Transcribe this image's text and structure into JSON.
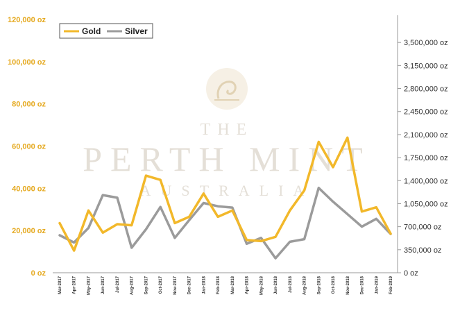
{
  "watermark": {
    "line1": "THE",
    "line2": "PERTH MINT",
    "line3": "AUSTRALIA"
  },
  "chart_data": {
    "type": "line",
    "x": [
      "Mar-2017",
      "Apr-2017",
      "May-2017",
      "Jun-2017",
      "Jul-2017",
      "Aug-2017",
      "Sep-2017",
      "Oct-2017",
      "Nov-2017",
      "Dec-2017",
      "Jan-2018",
      "Feb-2018",
      "Mar-2018",
      "Apr-2018",
      "May-2018",
      "Jun-2018",
      "Jul-2018",
      "Aug-2018",
      "Sep-2018",
      "Oct-2018",
      "Nov-2018",
      "Dec-2018",
      "Jan-2019",
      "Feb-2019"
    ],
    "x_tick_labels": [
      "Mar-2017",
      "Apr-2017",
      "May-2017",
      "Jun-2017",
      "Jul-2017",
      "Aug-2017",
      "Sep-2017",
      "Oct-2017",
      "Nov-2017",
      "Dec-2017",
      "Jan-2018",
      "Feb-2018",
      "Mar-2018",
      "Apr-2018",
      "May-2018",
      "Jun-2018",
      "Jul-2018",
      "Aug-2018",
      "Sep-2018",
      "Oct-2018",
      "Nov-2018",
      "Dec-2018",
      "Jan-2019",
      "Feb-2019"
    ],
    "series": [
      {
        "name": "Gold",
        "color": "#f2b82a",
        "axis": "left",
        "values": [
          23500,
          10500,
          29500,
          19000,
          23000,
          22500,
          46000,
          44000,
          23500,
          26500,
          37500,
          26500,
          29500,
          15500,
          15000,
          17000,
          29500,
          39000,
          62000,
          50000,
          64000,
          29000,
          31000,
          18500
        ]
      },
      {
        "name": "Silver",
        "color": "#9b9b9b",
        "axis": "right",
        "values": [
          570000,
          460000,
          680000,
          1180000,
          1140000,
          380000,
          660000,
          1000000,
          530000,
          800000,
          1060000,
          1010000,
          990000,
          440000,
          530000,
          220000,
          470000,
          510000,
          1290000,
          1080000,
          890000,
          700000,
          820000,
          590000
        ]
      }
    ],
    "y_left": {
      "ylim": [
        0,
        120000
      ],
      "ticks": [
        0,
        20000,
        40000,
        60000,
        80000,
        100000,
        120000
      ],
      "tick_labels": [
        "0 oz",
        "20,000 oz",
        "40,000 oz",
        "60,000 oz",
        "80,000 oz",
        "100,000 oz",
        "120,000 oz"
      ]
    },
    "y_right": {
      "ylim": [
        0,
        3850000
      ],
      "ticks": [
        0,
        350000,
        700000,
        1050000,
        1400000,
        1750000,
        2100000,
        2450000,
        2800000,
        3150000,
        3500000
      ],
      "tick_labels": [
        "0 oz",
        "350,000 oz",
        "700,000 oz",
        "1,050,000 oz",
        "1,400,000 oz",
        "1,750,000 oz",
        "2,100,000 oz",
        "2,450,000 oz",
        "2,800,000 oz",
        "3,150,000 oz",
        "3,500,000 oz"
      ]
    },
    "legend": {
      "placement": "top-left",
      "entries": [
        "Gold",
        "Silver"
      ]
    },
    "grid": false
  }
}
